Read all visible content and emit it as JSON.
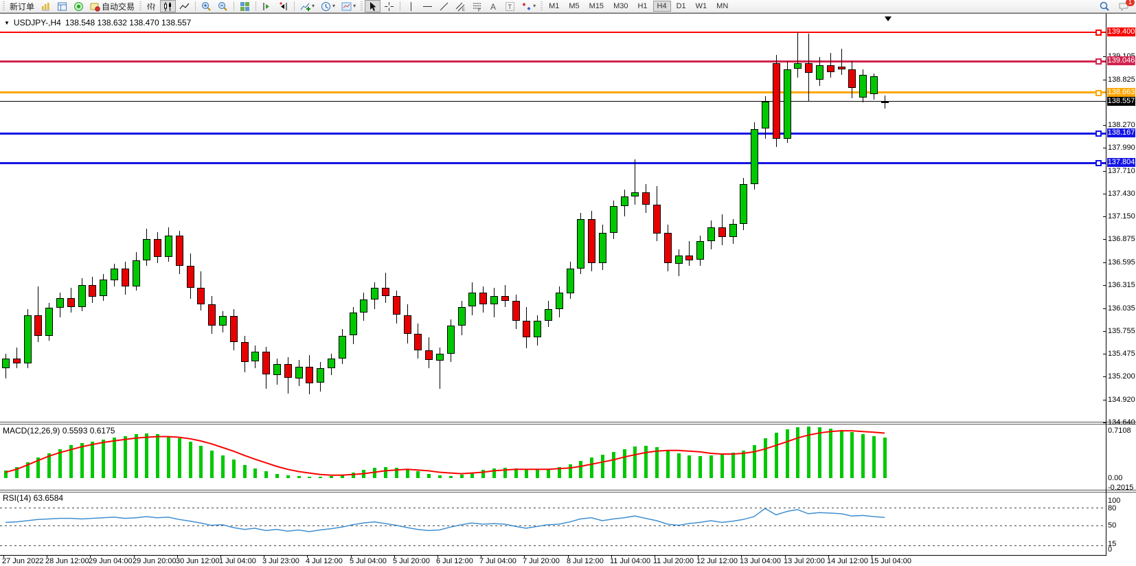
{
  "toolbar": {
    "new_order": "新订单",
    "auto_trading": "自动交易",
    "timeframes": [
      "M1",
      "M5",
      "M15",
      "M30",
      "H1",
      "H4",
      "D1",
      "W1",
      "MN"
    ],
    "active_timeframe": "H4",
    "notification_badge": "1"
  },
  "chart": {
    "collapse_arrow": "▼",
    "symbol_period": "USDJPY-,H4",
    "ohlc": "138.548 138.632 138.470 138.557",
    "price_ticks": [
      "139.105",
      "138.825",
      "138.270",
      "137.990",
      "137.710",
      "137.430",
      "137.150",
      "136.875",
      "136.595",
      "136.315",
      "136.035",
      "135.755",
      "135.475",
      "135.200",
      "134.920",
      "134.640"
    ],
    "levels": [
      {
        "price": 139.4,
        "label": "139.400",
        "color": "#f80500",
        "thickness": 2
      },
      {
        "price": 139.046,
        "label": "139.046",
        "color": "#d2234f",
        "thickness": 3
      },
      {
        "price": 138.663,
        "label": "138.663",
        "color": "#ffa600",
        "thickness": 3
      },
      {
        "price": 138.557,
        "label": "138.557",
        "color": "#000000",
        "thickness": 1
      },
      {
        "price": 138.167,
        "label": "138.167",
        "color": "#1414e6",
        "thickness": 3
      },
      {
        "price": 137.804,
        "label": "137.804",
        "color": "#1414e6",
        "thickness": 3
      }
    ],
    "time_labels": [
      "27 Jun 2022",
      "28 Jun 12:00",
      "29 Jun 04:00",
      "29 Jun 20:00",
      "30 Jun 12:00",
      "1 Jul 04:00",
      "3 Jul 23:00",
      "4 Jul 12:00",
      "5 Jul 04:00",
      "5 Jul 20:00",
      "6 Jul 12:00",
      "7 Jul 04:00",
      "7 Jul 20:00",
      "8 Jul 12:00",
      "11 Jul 04:00",
      "11 Jul 20:00",
      "12 Jul 12:00",
      "13 Jul 04:00",
      "13 Jul 20:00",
      "14 Jul 12:00",
      "15 Jul 04:00"
    ]
  },
  "macd": {
    "label": "MACD(12,26,9) 0.5593 0.6175",
    "axis": [
      "0.7108",
      "0.00",
      "-0.2015"
    ]
  },
  "rsi": {
    "label": "RSI(14) 63.6584",
    "axis": [
      "100",
      "80",
      "50",
      "15",
      "0"
    ]
  },
  "chart_data": [
    {
      "type": "candlestick",
      "title": "USDJPY-,H4",
      "bull_color": "#00c800",
      "bear_color": "#e80000",
      "wick_color": "#000000",
      "ylim": [
        134.64,
        139.6
      ],
      "candles": [
        [
          135.3,
          135.48,
          135.18,
          135.42
        ],
        [
          135.42,
          135.55,
          135.3,
          135.36
        ],
        [
          135.36,
          136.02,
          135.3,
          135.95
        ],
        [
          135.95,
          136.3,
          135.62,
          135.7
        ],
        [
          135.7,
          136.1,
          135.64,
          136.04
        ],
        [
          136.04,
          136.22,
          135.92,
          136.16
        ],
        [
          136.16,
          136.28,
          135.98,
          136.05
        ],
        [
          136.05,
          136.4,
          136.0,
          136.32
        ],
        [
          136.32,
          136.42,
          136.1,
          136.18
        ],
        [
          136.18,
          136.45,
          136.12,
          136.38
        ],
        [
          136.38,
          136.58,
          136.3,
          136.52
        ],
        [
          136.52,
          136.6,
          136.2,
          136.3
        ],
        [
          136.3,
          136.72,
          136.25,
          136.62
        ],
        [
          136.62,
          137.0,
          136.55,
          136.88
        ],
        [
          136.88,
          136.96,
          136.58,
          136.66
        ],
        [
          136.66,
          137.02,
          136.6,
          136.92
        ],
        [
          136.92,
          136.98,
          136.45,
          136.55
        ],
        [
          136.55,
          136.7,
          136.15,
          136.28
        ],
        [
          136.28,
          136.48,
          136.0,
          136.08
        ],
        [
          136.08,
          136.18,
          135.72,
          135.82
        ],
        [
          135.82,
          136.0,
          135.74,
          135.94
        ],
        [
          135.94,
          136.02,
          135.52,
          135.62
        ],
        [
          135.62,
          135.7,
          135.26,
          135.38
        ],
        [
          135.38,
          135.58,
          135.3,
          135.5
        ],
        [
          135.5,
          135.56,
          135.05,
          135.22
        ],
        [
          135.22,
          135.42,
          135.1,
          135.35
        ],
        [
          135.35,
          135.44,
          135.0,
          135.18
        ],
        [
          135.18,
          135.4,
          135.08,
          135.32
        ],
        [
          135.32,
          135.46,
          134.98,
          135.12
        ],
        [
          135.12,
          135.38,
          135.02,
          135.3
        ],
        [
          135.3,
          135.48,
          135.22,
          135.42
        ],
        [
          135.42,
          135.78,
          135.35,
          135.7
        ],
        [
          135.7,
          136.05,
          135.6,
          135.98
        ],
        [
          135.98,
          136.22,
          135.88,
          136.14
        ],
        [
          136.14,
          136.35,
          136.02,
          136.28
        ],
        [
          136.28,
          136.47,
          136.1,
          136.18
        ],
        [
          136.18,
          136.25,
          135.85,
          135.95
        ],
        [
          135.95,
          136.08,
          135.6,
          135.72
        ],
        [
          135.72,
          135.85,
          135.42,
          135.52
        ],
        [
          135.52,
          135.68,
          135.3,
          135.4
        ],
        [
          135.4,
          135.55,
          135.05,
          135.48
        ],
        [
          135.48,
          135.9,
          135.38,
          135.82
        ],
        [
          135.82,
          136.12,
          135.7,
          136.05
        ],
        [
          136.05,
          136.35,
          135.95,
          136.22
        ],
        [
          136.22,
          136.3,
          135.98,
          136.08
        ],
        [
          136.08,
          136.28,
          135.92,
          136.18
        ],
        [
          136.18,
          136.32,
          136.05,
          136.12
        ],
        [
          136.12,
          136.2,
          135.78,
          135.88
        ],
        [
          135.88,
          136.05,
          135.55,
          135.68
        ],
        [
          135.68,
          135.95,
          135.58,
          135.88
        ],
        [
          135.88,
          136.12,
          135.8,
          136.02
        ],
        [
          136.02,
          136.3,
          135.92,
          136.22
        ],
        [
          136.22,
          136.6,
          136.15,
          136.52
        ],
        [
          136.52,
          137.2,
          136.45,
          137.12
        ],
        [
          137.12,
          137.22,
          136.48,
          136.58
        ],
        [
          136.58,
          137.05,
          136.5,
          136.95
        ],
        [
          136.95,
          137.35,
          136.88,
          137.28
        ],
        [
          137.28,
          137.48,
          137.15,
          137.4
        ],
        [
          137.4,
          137.85,
          137.3,
          137.45
        ],
        [
          137.45,
          137.55,
          137.2,
          137.3
        ],
        [
          137.3,
          137.52,
          136.85,
          136.95
        ],
        [
          136.95,
          137.05,
          136.48,
          136.58
        ],
        [
          136.58,
          136.75,
          136.42,
          136.68
        ],
        [
          136.68,
          136.85,
          136.55,
          136.62
        ],
        [
          136.62,
          136.92,
          136.55,
          136.85
        ],
        [
          136.85,
          137.1,
          136.75,
          137.02
        ],
        [
          137.02,
          137.18,
          136.8,
          136.9
        ],
        [
          136.9,
          137.12,
          136.82,
          137.06
        ],
        [
          137.06,
          137.62,
          136.98,
          137.55
        ],
        [
          137.55,
          138.3,
          137.48,
          138.22
        ],
        [
          138.22,
          138.62,
          138.1,
          138.55
        ],
        [
          139.02,
          139.12,
          138.0,
          138.1
        ],
        [
          138.1,
          139.05,
          138.05,
          138.95
        ],
        [
          138.95,
          139.4,
          138.85,
          139.02
        ],
        [
          139.02,
          139.38,
          138.55,
          138.9
        ],
        [
          138.82,
          139.1,
          138.75,
          139.0
        ],
        [
          139.0,
          139.15,
          138.85,
          138.92
        ],
        [
          138.98,
          139.2,
          138.88,
          138.95
        ],
        [
          138.95,
          139.05,
          138.6,
          138.72
        ],
        [
          138.6,
          138.95,
          138.55,
          138.88
        ],
        [
          138.64,
          138.9,
          138.58,
          138.86
        ],
        [
          138.548,
          138.632,
          138.47,
          138.557
        ]
      ]
    },
    {
      "type": "bar",
      "title": "MACD(12,26,9)",
      "histogram_color": "#00c800",
      "signal_color": "#f80500",
      "ylim": [
        -0.2015,
        0.7108
      ],
      "current_macd": 0.5593,
      "current_signal": 0.6175,
      "values": [
        0.1,
        0.15,
        0.22,
        0.28,
        0.34,
        0.4,
        0.45,
        0.48,
        0.5,
        0.53,
        0.56,
        0.58,
        0.6,
        0.61,
        0.6,
        0.58,
        0.55,
        0.5,
        0.44,
        0.38,
        0.31,
        0.25,
        0.18,
        0.13,
        0.09,
        0.06,
        0.04,
        0.03,
        0.02,
        0.02,
        0.03,
        0.05,
        0.08,
        0.11,
        0.14,
        0.15,
        0.14,
        0.12,
        0.09,
        0.06,
        0.04,
        0.03,
        0.05,
        0.08,
        0.11,
        0.13,
        0.14,
        0.13,
        0.12,
        0.11,
        0.12,
        0.15,
        0.19,
        0.24,
        0.28,
        0.32,
        0.36,
        0.4,
        0.43,
        0.44,
        0.42,
        0.38,
        0.34,
        0.31,
        0.3,
        0.31,
        0.33,
        0.35,
        0.38,
        0.45,
        0.55,
        0.62,
        0.67,
        0.7,
        0.71,
        0.7,
        0.68,
        0.66,
        0.63,
        0.6,
        0.58,
        0.5593
      ],
      "signal": [
        0.08,
        0.12,
        0.18,
        0.24,
        0.3,
        0.35,
        0.39,
        0.43,
        0.46,
        0.49,
        0.51,
        0.53,
        0.55,
        0.56,
        0.57,
        0.57,
        0.56,
        0.54,
        0.51,
        0.47,
        0.42,
        0.37,
        0.31,
        0.26,
        0.21,
        0.16,
        0.12,
        0.09,
        0.07,
        0.05,
        0.04,
        0.04,
        0.05,
        0.06,
        0.08,
        0.1,
        0.11,
        0.12,
        0.11,
        0.1,
        0.08,
        0.07,
        0.06,
        0.07,
        0.08,
        0.1,
        0.11,
        0.12,
        0.12,
        0.12,
        0.12,
        0.13,
        0.14,
        0.16,
        0.19,
        0.22,
        0.25,
        0.29,
        0.32,
        0.35,
        0.37,
        0.38,
        0.38,
        0.37,
        0.36,
        0.34,
        0.33,
        0.33,
        0.34,
        0.36,
        0.4,
        0.45,
        0.5,
        0.55,
        0.59,
        0.62,
        0.64,
        0.65,
        0.65,
        0.64,
        0.63,
        0.6175
      ]
    },
    {
      "type": "line",
      "title": "RSI(14)",
      "color": "#3f8fd2",
      "ylim": [
        0,
        100
      ],
      "levels": [
        80,
        50,
        15
      ],
      "current_value": 63.6584,
      "values": [
        55,
        56,
        58,
        60,
        61,
        62,
        62,
        61,
        62,
        63,
        64,
        62,
        63,
        65,
        63,
        64,
        60,
        57,
        54,
        50,
        51,
        46,
        43,
        45,
        41,
        43,
        40,
        42,
        39,
        42,
        44,
        47,
        51,
        54,
        56,
        53,
        50,
        46,
        43,
        41,
        42,
        47,
        51,
        54,
        52,
        53,
        52,
        48,
        45,
        48,
        51,
        52,
        56,
        61,
        63,
        58,
        61,
        63,
        66,
        62,
        58,
        52,
        50,
        53,
        55,
        58,
        55,
        57,
        60,
        65,
        79,
        68,
        74,
        77,
        70,
        72,
        71,
        70,
        66,
        67,
        65,
        63.6584
      ]
    }
  ]
}
